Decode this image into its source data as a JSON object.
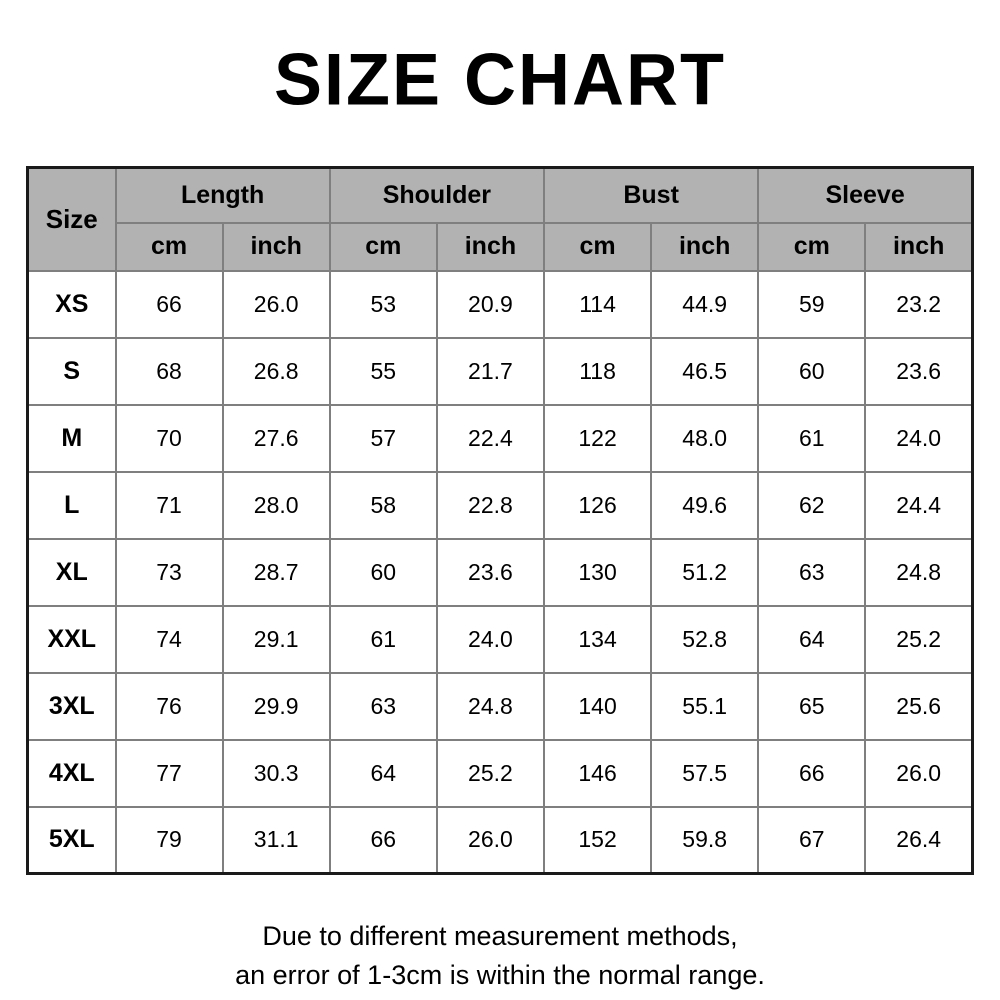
{
  "page": {
    "title": "SIZE CHART"
  },
  "colors": {
    "header_bg": "#b2b2b2",
    "grid_line": "#7f7f7f",
    "outer_border": "#1a1a1a",
    "text": "#000000",
    "page_bg": "#ffffff"
  },
  "chart_data": {
    "type": "table",
    "title": "SIZE CHART",
    "corner_header": "Size",
    "column_groups": [
      {
        "label": "Length"
      },
      {
        "label": "Shoulder"
      },
      {
        "label": "Bust"
      },
      {
        "label": "Sleeve"
      }
    ],
    "sub_headers": [
      "cm",
      "inch"
    ],
    "rows": [
      {
        "size": "XS",
        "values": [
          "66",
          "26.0",
          "53",
          "20.9",
          "114",
          "44.9",
          "59",
          "23.2"
        ]
      },
      {
        "size": "S",
        "values": [
          "68",
          "26.8",
          "55",
          "21.7",
          "118",
          "46.5",
          "60",
          "23.6"
        ]
      },
      {
        "size": "M",
        "values": [
          "70",
          "27.6",
          "57",
          "22.4",
          "122",
          "48.0",
          "61",
          "24.0"
        ]
      },
      {
        "size": "L",
        "values": [
          "71",
          "28.0",
          "58",
          "22.8",
          "126",
          "49.6",
          "62",
          "24.4"
        ]
      },
      {
        "size": "XL",
        "values": [
          "73",
          "28.7",
          "60",
          "23.6",
          "130",
          "51.2",
          "63",
          "24.8"
        ]
      },
      {
        "size": "XXL",
        "values": [
          "74",
          "29.1",
          "61",
          "24.0",
          "134",
          "52.8",
          "64",
          "25.2"
        ]
      },
      {
        "size": "3XL",
        "values": [
          "76",
          "29.9",
          "63",
          "24.8",
          "140",
          "55.1",
          "65",
          "25.6"
        ]
      },
      {
        "size": "4XL",
        "values": [
          "77",
          "30.3",
          "64",
          "25.2",
          "146",
          "57.5",
          "66",
          "26.0"
        ]
      },
      {
        "size": "5XL",
        "values": [
          "79",
          "31.1",
          "66",
          "26.0",
          "152",
          "59.8",
          "67",
          "26.4"
        ]
      }
    ],
    "note": [
      "Due to different measurement methods,",
      "an error of 1-3cm is within the normal range."
    ]
  }
}
